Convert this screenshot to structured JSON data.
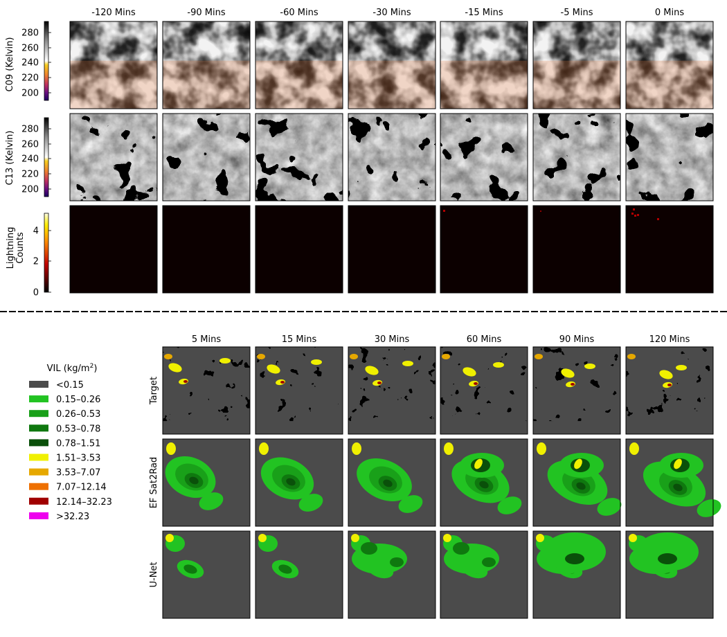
{
  "top_section": {
    "column_titles": [
      "-120 Mins",
      "-90 Mins",
      "-60 Mins",
      "-30 Mins",
      "-15 Mins",
      "-5 Mins",
      "0 Mins"
    ],
    "rows": [
      {
        "label": "C09 (Kelvin)",
        "colorbar_ticks": [
          "200",
          "220",
          "240",
          "260",
          "280"
        ],
        "colormap": "gray-to-inferno"
      },
      {
        "label": "C13 (Kelvin)",
        "colorbar_ticks": [
          "200",
          "220",
          "240",
          "260",
          "280"
        ],
        "colormap": "gray-to-inferno"
      },
      {
        "label_line1": "Lightning",
        "label_line2": "Counts",
        "colorbar_ticks": [
          "0",
          "2",
          "4"
        ],
        "colormap": "hot"
      }
    ]
  },
  "bottom_section": {
    "column_titles": [
      "5 Mins",
      "15 Mins",
      "30 Mins",
      "60 Mins",
      "90 Mins",
      "120 Mins"
    ],
    "row_labels": [
      "Target",
      "EF Sat2Rad",
      "U-Net"
    ]
  },
  "legend": {
    "title": "VIL (kg/m",
    "title_superscript": "2",
    "title_suffix": ")",
    "entries": [
      {
        "label": "<0.15",
        "color": "#4b4b4b"
      },
      {
        "label": "0.15–0.26",
        "color": "#22c322"
      },
      {
        "label": "0.26–0.53",
        "color": "#19a019"
      },
      {
        "label": "0.53–0.78",
        "color": "#0f780f"
      },
      {
        "label": "0.78–1.51",
        "color": "#0a500a"
      },
      {
        "label": "1.51–3.53",
        "color": "#f0f000"
      },
      {
        "label": "3.53–7.07",
        "color": "#e6a800"
      },
      {
        "label": "7.07–12.14",
        "color": "#ee7000"
      },
      {
        "label": "12.14–32.23",
        "color": "#a00000"
      },
      {
        "label": ">32.23",
        "color": "#ee00ee"
      }
    ]
  }
}
